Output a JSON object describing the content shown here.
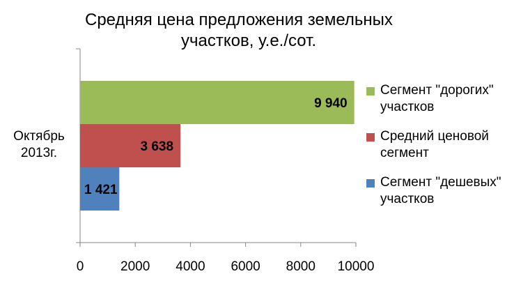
{
  "chart_data": {
    "type": "bar",
    "orientation": "horizontal",
    "title_line1": "Средняя цена предложения земельных",
    "title_line2": "участков, у.е./сот.",
    "categories": [
      "Октябрь 2013г."
    ],
    "category_label_line1": "Октябрь",
    "category_label_line2": "2013г.",
    "series": [
      {
        "name": "Сегмент \"дорогих\" участков",
        "name_line1": "Сегмент \"дорогих\"",
        "name_line2": "участков",
        "values": [
          9940
        ],
        "label": "9 940",
        "color": "#9bbb59"
      },
      {
        "name": "Средний ценовой сегмент",
        "name_line1": "Средний ценовой",
        "name_line2": "сегмент",
        "values": [
          3638
        ],
        "label": "3 638",
        "color": "#c0504d"
      },
      {
        "name": "Сегмент \"дешевых\" участков",
        "name_line1": "Сегмент \"дешевых\"",
        "name_line2": "участков",
        "values": [
          1421
        ],
        "label": "1 421",
        "color": "#4f81bd"
      }
    ],
    "xlim": [
      0,
      10000
    ],
    "xticks": [
      "0",
      "2000",
      "4000",
      "6000",
      "8000",
      "10000"
    ],
    "xtick_values": [
      0,
      2000,
      4000,
      6000,
      8000,
      10000
    ],
    "grid": false,
    "legend_position": "right"
  }
}
